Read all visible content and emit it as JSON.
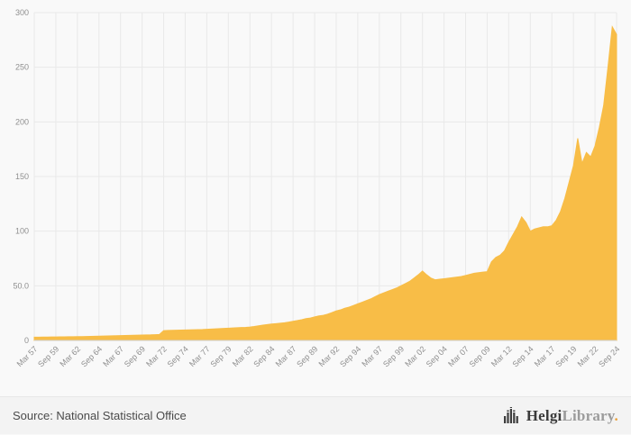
{
  "page": {
    "background": "#f9f9f9"
  },
  "chart_data": {
    "type": "area",
    "title": "",
    "xlabel": "",
    "ylabel": "",
    "ylim": [
      0,
      300
    ],
    "grid": true,
    "legend": false,
    "color": "#f8bd47",
    "gridline_color": "#e9e9e9",
    "axis_line_color": "#cfcfcf",
    "y_ticks": [
      0,
      50,
      100,
      150,
      200,
      250,
      300
    ],
    "y_tick_labels": [
      "0",
      "50.0",
      "100",
      "150",
      "200",
      "250",
      "300"
    ],
    "tick_every": 5,
    "x_tick_labels": [
      "Mar 57",
      "Sep 59",
      "Mar 62",
      "Sep 64",
      "Mar 67",
      "Sep 69",
      "Mar 72",
      "Sep 74",
      "Mar 77",
      "Sep 79",
      "Mar 82",
      "Sep 84",
      "Mar 87",
      "Sep 89",
      "Mar 92",
      "Sep 94",
      "Mar 97",
      "Sep 99",
      "Mar 02",
      "Sep 04",
      "Mar 07",
      "Sep 09",
      "Mar 12",
      "Sep 14",
      "Mar 17",
      "Sep 19",
      "Mar 22",
      "Sep 24"
    ],
    "values": [
      3,
      3,
      3.1,
      3.1,
      3.2,
      3.2,
      3.3,
      3.3,
      3.4,
      3.4,
      3.5,
      3.5,
      3.6,
      3.7,
      3.8,
      3.9,
      4,
      4.1,
      4.2,
      4.3,
      4.4,
      4.5,
      4.6,
      4.7,
      4.8,
      4.9,
      5,
      5.1,
      5.3,
      5.5,
      9,
      9.2,
      9.3,
      9.4,
      9.5,
      9.6,
      9.7,
      9.8,
      9.9,
      10,
      10.2,
      10.4,
      10.6,
      10.8,
      11,
      11.2,
      11.4,
      11.6,
      11.8,
      12,
      12.3,
      12.8,
      13.4,
      14,
      14.5,
      15,
      15.4,
      15.8,
      16.2,
      16.8,
      17.5,
      18.2,
      19,
      20,
      20.5,
      21.5,
      22.5,
      23,
      24,
      25.5,
      27,
      28,
      29.5,
      30.5,
      32,
      33.5,
      35,
      36.5,
      38,
      40,
      42,
      43.5,
      45,
      46.5,
      48,
      50,
      52,
      54,
      57,
      60,
      63.5,
      60,
      57,
      55.5,
      56,
      56.5,
      57,
      57.5,
      58,
      58.5,
      59.5,
      60.5,
      61.5,
      62,
      62.5,
      63,
      72,
      76,
      78,
      82,
      90,
      97,
      104,
      113,
      108,
      100,
      102,
      103,
      104,
      104,
      105,
      110,
      118,
      130,
      145,
      160,
      185,
      162,
      172,
      168,
      178,
      195,
      215,
      250,
      287,
      280
    ]
  },
  "footer": {
    "source": "Source: National Statistical Office",
    "logo": {
      "bold": "Helgi",
      "light": "Library",
      "dot": ".",
      "dot_color": "#e9a13b",
      "icon": "helgi-skyline-icon"
    }
  }
}
